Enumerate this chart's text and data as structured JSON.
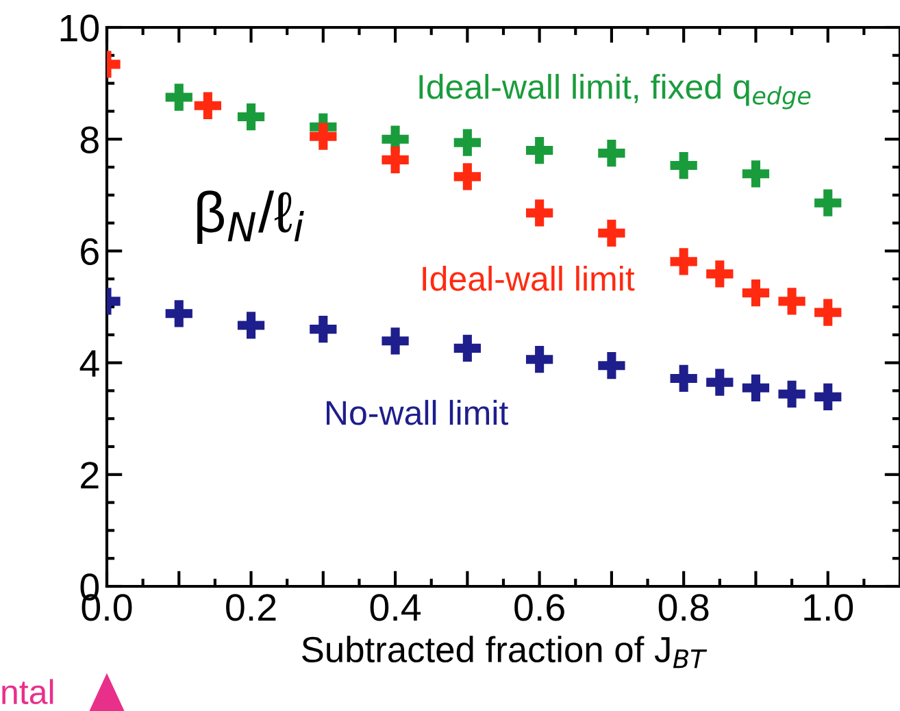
{
  "chart_data": {
    "type": "scatter",
    "xlabel": "Subtracted fraction of J$_{BT}$",
    "ylabel": "β$_{N}$/ℓ$_{i}$",
    "xlim": [
      0,
      1.1
    ],
    "ylim": [
      0,
      10
    ],
    "xticks": [
      {
        "value": 0,
        "label": "0.0"
      },
      {
        "value": 0.1,
        "label": null
      },
      {
        "value": 0.2,
        "label": "0.2"
      },
      {
        "value": 0.3,
        "label": null
      },
      {
        "value": 0.4,
        "label": "0.4"
      },
      {
        "value": 0.5,
        "label": null
      },
      {
        "value": 0.6,
        "label": "0.6"
      },
      {
        "value": 0.7,
        "label": null
      },
      {
        "value": 0.8,
        "label": "0.8"
      },
      {
        "value": 0.9,
        "label": null
      },
      {
        "value": 1.0,
        "label": "1.0"
      }
    ],
    "yticks": [
      0,
      2,
      4,
      6,
      8,
      10
    ],
    "marker": "cross",
    "grid": false,
    "legend": false,
    "series": [
      {
        "name": "Ideal-wall limit, fixed q$_{edge}$",
        "color": "#1a9c3c",
        "x": [
          0.1,
          0.2,
          0.3,
          0.4,
          0.5,
          0.6,
          0.7,
          0.8,
          0.9,
          1.0
        ],
        "values": [
          8.75,
          8.4,
          8.22,
          8.0,
          7.94,
          7.8,
          7.75,
          7.53,
          7.38,
          6.86
        ]
      },
      {
        "name": "Ideal-wall limit",
        "color": "#ff2a10",
        "x": [
          0.0,
          0.14,
          0.3,
          0.4,
          0.5,
          0.6,
          0.7,
          0.8,
          0.85,
          0.9,
          0.95,
          1.0
        ],
        "values": [
          9.34,
          8.6,
          8.05,
          7.63,
          7.33,
          6.68,
          6.32,
          5.81,
          5.59,
          5.25,
          5.1,
          4.9
        ]
      },
      {
        "name": "No-wall limit",
        "color": "#1e1e8c",
        "x": [
          0.0,
          0.1,
          0.2,
          0.3,
          0.4,
          0.5,
          0.6,
          0.7,
          0.8,
          0.85,
          0.9,
          0.95,
          1.0
        ],
        "values": [
          5.1,
          4.88,
          4.67,
          4.6,
          4.39,
          4.26,
          4.06,
          3.95,
          3.72,
          3.65,
          3.55,
          3.44,
          3.39
        ]
      }
    ],
    "annotations": [
      "ntal"
    ]
  }
}
